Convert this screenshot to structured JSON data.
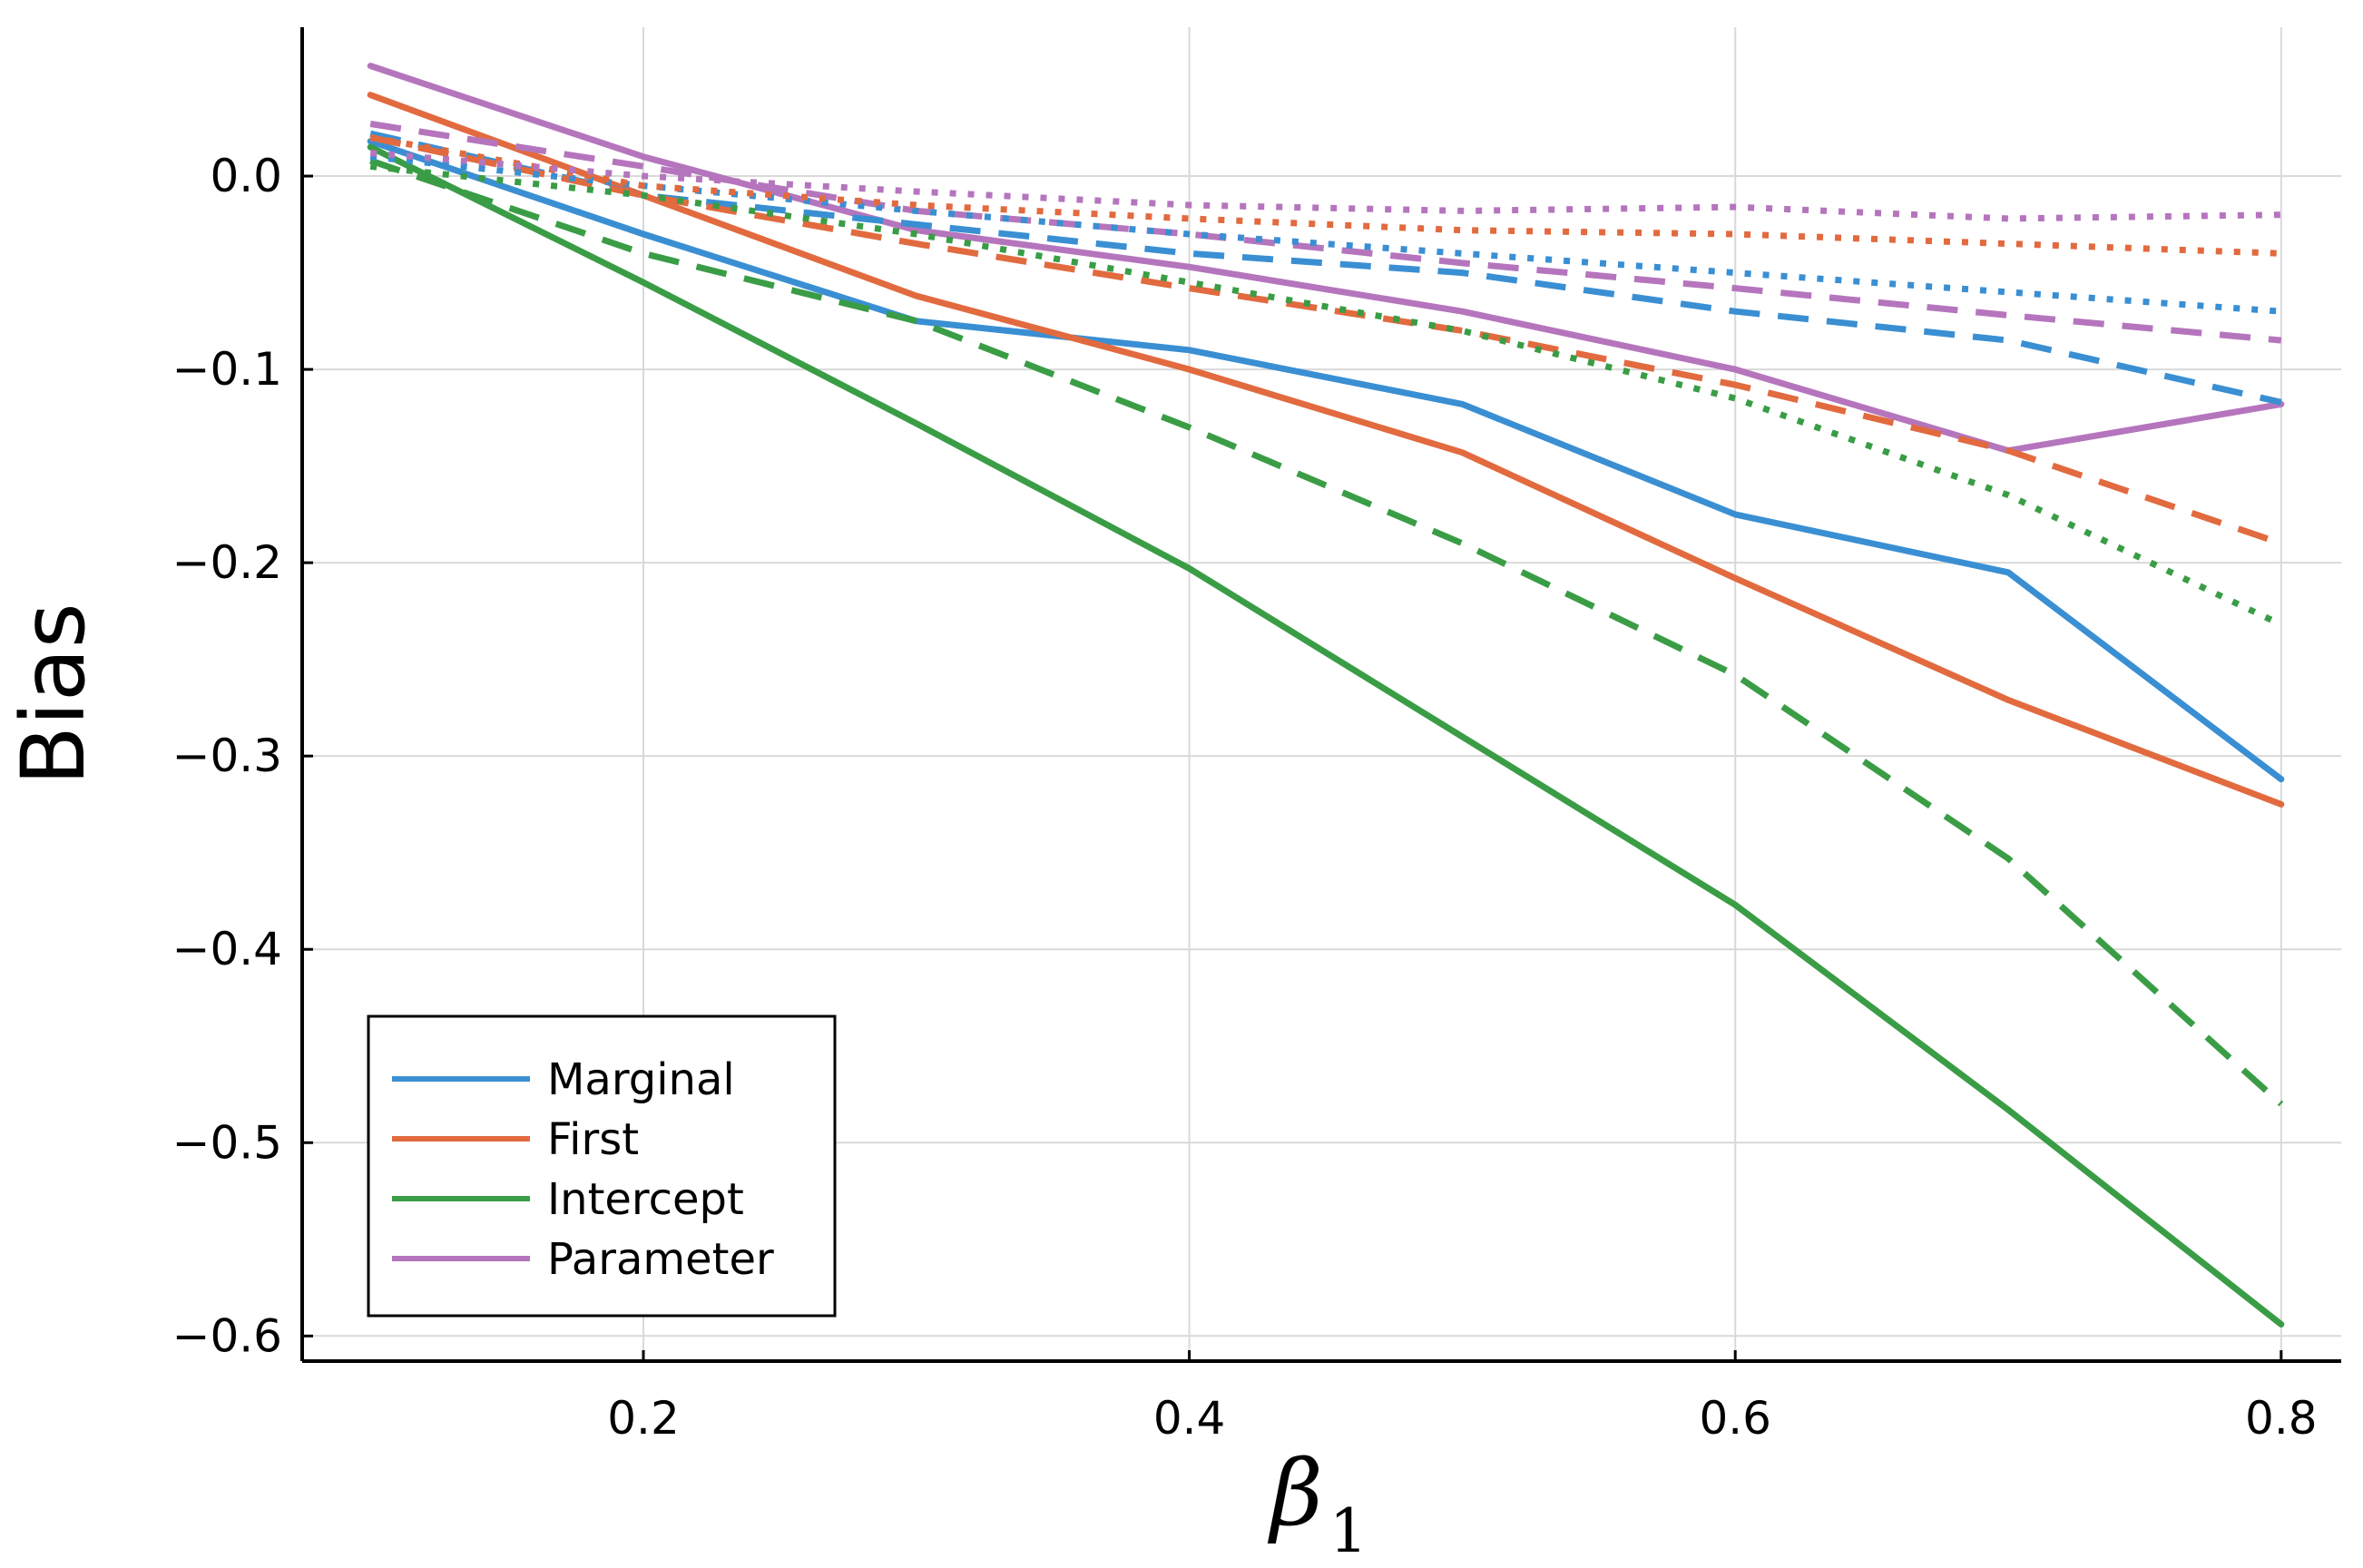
{
  "chart_data": {
    "type": "line",
    "title": "",
    "xlabel": "β",
    "xlabel_subscript": "1",
    "ylabel": "Bias",
    "xlim": [
      0.075,
      0.822
    ],
    "ylim": [
      -0.613,
      0.077
    ],
    "xticks": [
      0.2,
      0.4,
      0.6,
      0.8
    ],
    "xtick_labels": [
      "0.2",
      "0.4",
      "0.6",
      "0.8"
    ],
    "yticks": [
      0.0,
      -0.1,
      -0.2,
      -0.3,
      -0.4,
      -0.5,
      -0.6
    ],
    "ytick_labels": [
      "0.0",
      "−0.1",
      "−0.2",
      "−0.3",
      "−0.4",
      "−0.5",
      "−0.6"
    ],
    "grid": true,
    "legend_position": "bottom-left",
    "x": [
      0.1,
      0.2,
      0.3,
      0.4,
      0.5,
      0.6,
      0.7,
      0.8
    ],
    "series": [
      {
        "name": "Marginal",
        "color": "#3a8fd3",
        "style": "solid",
        "legend": true,
        "values": [
          0.018,
          -0.03,
          -0.075,
          -0.09,
          -0.118,
          -0.175,
          -0.205,
          -0.312
        ]
      },
      {
        "name": "First",
        "color": "#e26a3f",
        "style": "solid",
        "legend": true,
        "values": [
          0.042,
          -0.01,
          -0.062,
          -0.1,
          -0.143,
          -0.208,
          -0.271,
          -0.325
        ]
      },
      {
        "name": "Intercept",
        "color": "#3a9d46",
        "style": "solid",
        "legend": true,
        "values": [
          0.015,
          -0.055,
          -0.128,
          -0.203,
          -0.29,
          -0.377,
          -0.483,
          -0.594
        ]
      },
      {
        "name": "Parameter",
        "color": "#b575bd",
        "style": "solid",
        "legend": true,
        "values": [
          0.057,
          0.01,
          -0.028,
          -0.047,
          -0.07,
          -0.1,
          -0.142,
          -0.118
        ]
      },
      {
        "name": "Marginal (dashed)",
        "color": "#3a8fd3",
        "style": "dashed",
        "legend": false,
        "values": [
          0.022,
          -0.01,
          -0.025,
          -0.04,
          -0.05,
          -0.07,
          -0.085,
          -0.117
        ]
      },
      {
        "name": "First (dashed)",
        "color": "#e26a3f",
        "style": "dashed",
        "legend": false,
        "values": [
          0.02,
          -0.01,
          -0.035,
          -0.058,
          -0.08,
          -0.108,
          -0.142,
          -0.19
        ]
      },
      {
        "name": "Intercept (dashed)",
        "color": "#3a9d46",
        "style": "dashed",
        "legend": false,
        "values": [
          0.008,
          -0.04,
          -0.075,
          -0.13,
          -0.19,
          -0.258,
          -0.353,
          -0.48
        ]
      },
      {
        "name": "Parameter (dashed)",
        "color": "#b575bd",
        "style": "dashed",
        "legend": false,
        "values": [
          0.027,
          0.005,
          -0.018,
          -0.03,
          -0.045,
          -0.058,
          -0.072,
          -0.085
        ]
      },
      {
        "name": "Marginal (dotted)",
        "color": "#3a8fd3",
        "style": "dotted",
        "legend": false,
        "values": [
          0.01,
          -0.005,
          -0.018,
          -0.03,
          -0.04,
          -0.05,
          -0.06,
          -0.07
        ]
      },
      {
        "name": "First (dotted)",
        "color": "#e26a3f",
        "style": "dotted",
        "legend": false,
        "values": [
          0.02,
          -0.005,
          -0.015,
          -0.022,
          -0.028,
          -0.03,
          -0.035,
          -0.04
        ]
      },
      {
        "name": "Intercept (dotted)",
        "color": "#3a9d46",
        "style": "dotted",
        "legend": false,
        "values": [
          0.005,
          -0.01,
          -0.03,
          -0.055,
          -0.08,
          -0.115,
          -0.165,
          -0.232
        ]
      },
      {
        "name": "Parameter (dotted)",
        "color": "#b575bd",
        "style": "dotted",
        "legend": false,
        "values": [
          0.012,
          0.0,
          -0.008,
          -0.015,
          -0.018,
          -0.016,
          -0.022,
          -0.02
        ]
      }
    ]
  }
}
